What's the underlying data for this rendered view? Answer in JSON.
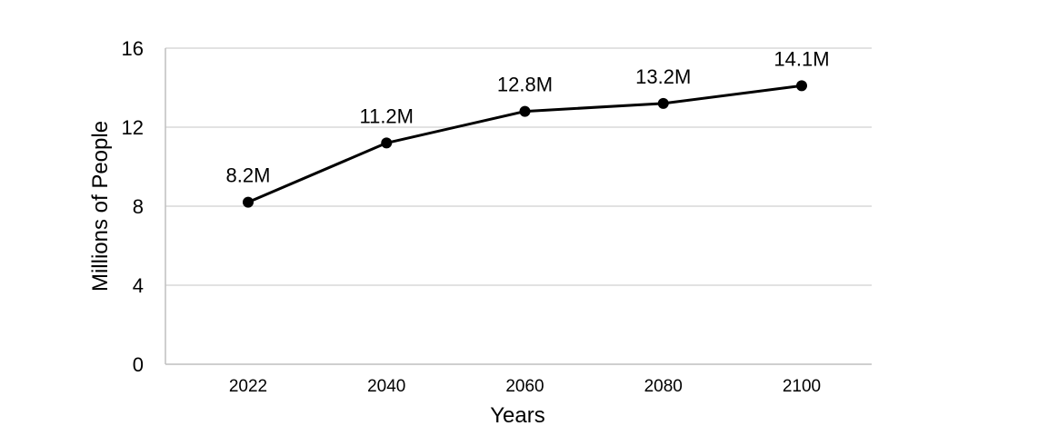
{
  "chart_data": {
    "type": "line",
    "title": "",
    "xlabel": "Years",
    "ylabel": "Millions of People",
    "categories": [
      "2022",
      "2040",
      "2060",
      "2080",
      "2100"
    ],
    "values": [
      8.2,
      11.2,
      12.8,
      13.2,
      14.1
    ],
    "data_labels": [
      "8.2M",
      "11.2M",
      "12.8M",
      "13.2M",
      "14.1M"
    ],
    "yticks": [
      0,
      4,
      8,
      12,
      16
    ],
    "ylim": [
      0,
      16
    ],
    "grid": true,
    "legend": "none",
    "colors": {
      "line": "#000000",
      "marker": "#000000",
      "grid": "#d9d9d9",
      "axis": "#bfbfbf"
    }
  }
}
